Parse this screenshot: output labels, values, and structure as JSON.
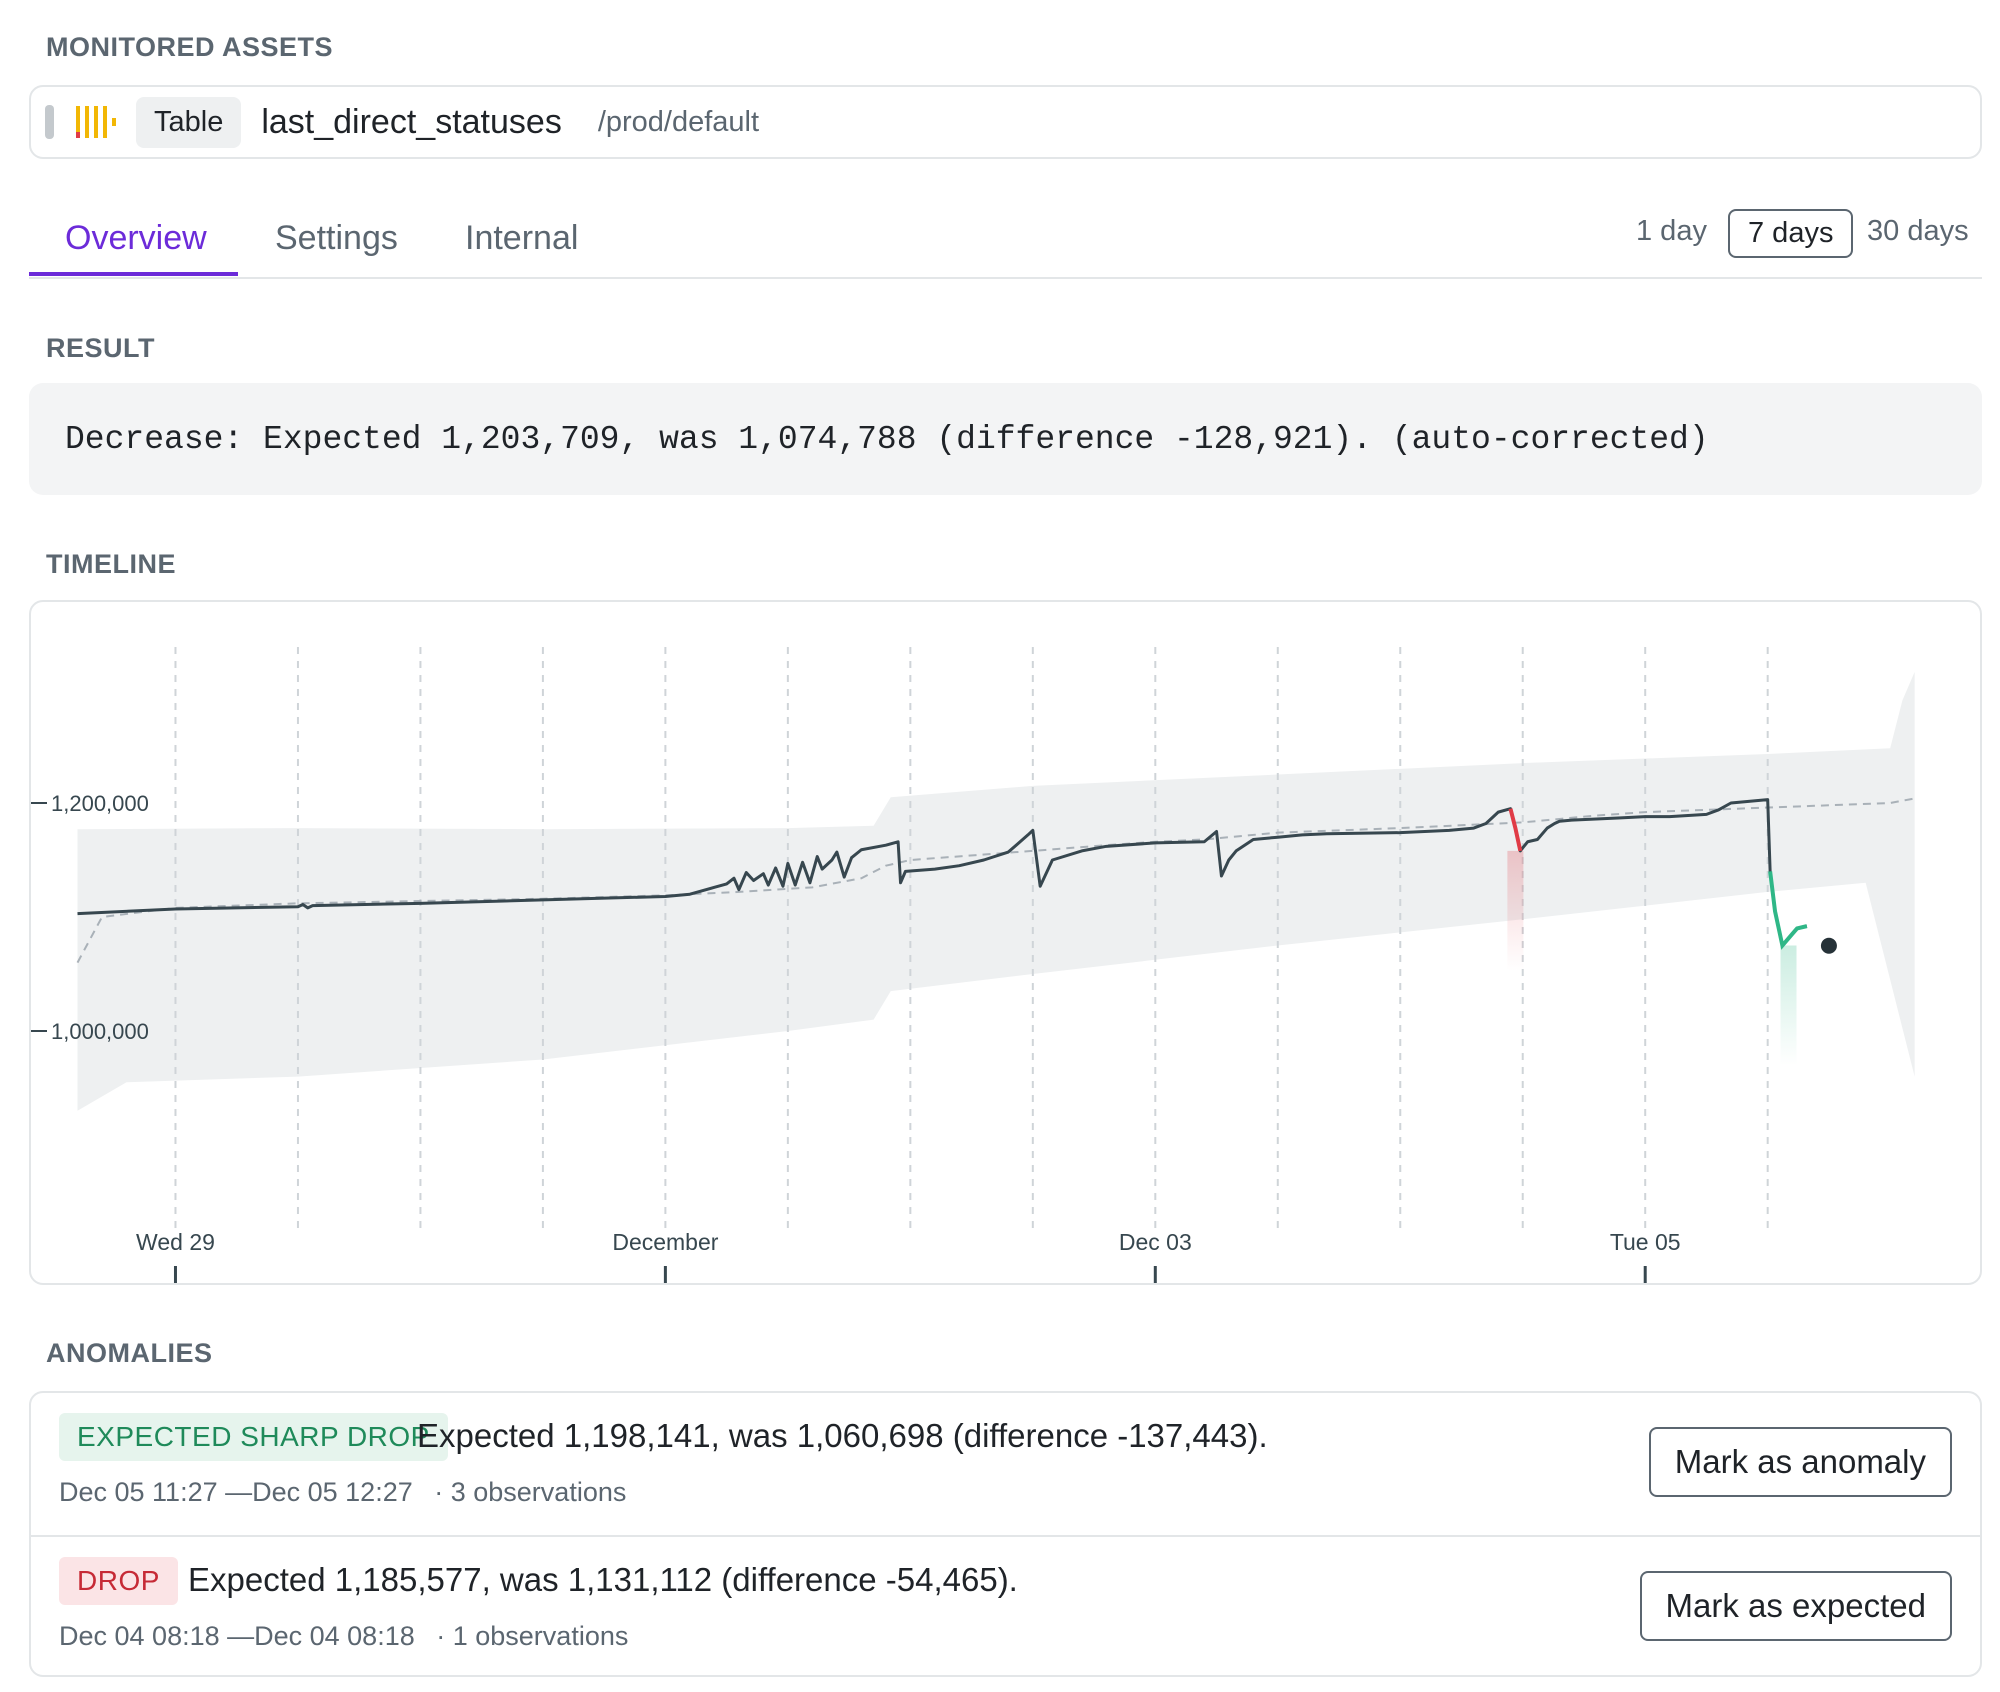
{
  "sections": {
    "monitored_assets": "MONITORED ASSETS",
    "result": "RESULT",
    "timeline": "TIMELINE",
    "anomalies": "ANOMALIES"
  },
  "asset": {
    "type": "Table",
    "name": "last_direct_statuses",
    "path": "/prod/default"
  },
  "tabs": [
    {
      "label": "Overview",
      "active": true
    },
    {
      "label": "Settings",
      "active": false
    },
    {
      "label": "Internal",
      "active": false
    }
  ],
  "ranges": [
    {
      "label": "1 day",
      "active": false
    },
    {
      "label": "7 days",
      "active": true
    },
    {
      "label": "30 days",
      "active": false
    }
  ],
  "result_text": "Decrease: Expected 1,203,709, was 1,074,788 (difference -128,921). (auto-corrected)",
  "chart_data": {
    "type": "line",
    "x_unit": "days since Nov 28 00:00",
    "xlim": [
      -0.5,
      7.33
    ],
    "ylim": [
      850000,
      1350000
    ],
    "y_ticks": [
      {
        "value": 1000000,
        "label": "1,000,000"
      },
      {
        "value": 1200000,
        "label": "1,200,000"
      }
    ],
    "x_ticks": [
      {
        "value": 0,
        "label": "Wed 29"
      },
      {
        "value": 2,
        "label": "December"
      },
      {
        "value": 4,
        "label": "Dec 03"
      },
      {
        "value": 6,
        "label": "Tue 05"
      }
    ],
    "minor_gridlines": [
      0,
      0.5,
      1,
      1.5,
      2,
      2.5,
      3,
      3.5,
      4,
      4.5,
      5,
      5.5,
      6,
      6.5
    ],
    "band_upper": [
      [
        -0.4,
        1177000
      ],
      [
        0.5,
        1178000
      ],
      [
        1.5,
        1177000
      ],
      [
        2.5,
        1178000
      ],
      [
        2.85,
        1180000
      ],
      [
        2.92,
        1205000
      ],
      [
        3.5,
        1215000
      ],
      [
        4.5,
        1225000
      ],
      [
        5.5,
        1235000
      ],
      [
        6.5,
        1243000
      ],
      [
        7.0,
        1248000
      ],
      [
        7.05,
        1290000
      ],
      [
        7.1,
        1315000
      ]
    ],
    "band_lower": [
      [
        -0.4,
        930000
      ],
      [
        -0.2,
        955000
      ],
      [
        0.5,
        960000
      ],
      [
        1.5,
        975000
      ],
      [
        2.5,
        1000000
      ],
      [
        2.85,
        1010000
      ],
      [
        2.92,
        1035000
      ],
      [
        3.5,
        1050000
      ],
      [
        4.5,
        1075000
      ],
      [
        5.5,
        1098000
      ],
      [
        6.5,
        1122000
      ],
      [
        6.9,
        1130000
      ],
      [
        7.1,
        960000
      ]
    ],
    "expected": [
      [
        -0.4,
        1060000
      ],
      [
        -0.3,
        1100000
      ],
      [
        0,
        1108000
      ],
      [
        0.5,
        1112000
      ],
      [
        1,
        1114000
      ],
      [
        1.5,
        1116000
      ],
      [
        2,
        1119000
      ],
      [
        2.3,
        1122000
      ],
      [
        2.6,
        1126000
      ],
      [
        2.8,
        1134000
      ],
      [
        2.9,
        1145000
      ],
      [
        3.0,
        1150000
      ],
      [
        3.5,
        1158000
      ],
      [
        3.8,
        1163000
      ],
      [
        4.0,
        1166000
      ],
      [
        4.2,
        1168000
      ],
      [
        4.5,
        1174000
      ],
      [
        5.0,
        1178000
      ],
      [
        5.5,
        1183000
      ],
      [
        5.8,
        1189000
      ],
      [
        6.0,
        1192000
      ],
      [
        6.5,
        1196000
      ],
      [
        7.0,
        1200000
      ],
      [
        7.1,
        1204000
      ]
    ],
    "actual": [
      [
        -0.4,
        1103000
      ],
      [
        0,
        1107000
      ],
      [
        0.5,
        1109000
      ],
      [
        0.52,
        1111000
      ],
      [
        0.54,
        1108000
      ],
      [
        0.56,
        1110000
      ],
      [
        1,
        1112000
      ],
      [
        1.5,
        1115000
      ],
      [
        2,
        1118000
      ],
      [
        2.1,
        1120000
      ],
      [
        2.2,
        1126000
      ],
      [
        2.25,
        1129000
      ],
      [
        2.28,
        1134000
      ],
      [
        2.3,
        1124000
      ],
      [
        2.33,
        1139000
      ],
      [
        2.36,
        1132000
      ],
      [
        2.4,
        1138000
      ],
      [
        2.42,
        1128000
      ],
      [
        2.45,
        1143000
      ],
      [
        2.48,
        1127000
      ],
      [
        2.5,
        1147000
      ],
      [
        2.53,
        1128000
      ],
      [
        2.56,
        1148000
      ],
      [
        2.59,
        1130000
      ],
      [
        2.62,
        1153000
      ],
      [
        2.64,
        1142000
      ],
      [
        2.68,
        1150000
      ],
      [
        2.7,
        1157000
      ],
      [
        2.73,
        1135000
      ],
      [
        2.76,
        1152000
      ],
      [
        2.8,
        1159000
      ],
      [
        2.9,
        1163000
      ],
      [
        2.95,
        1166000
      ],
      [
        2.96,
        1130000
      ],
      [
        2.98,
        1140000
      ],
      [
        3.1,
        1142000
      ],
      [
        3.2,
        1145000
      ],
      [
        3.3,
        1150000
      ],
      [
        3.4,
        1157000
      ],
      [
        3.48,
        1172000
      ],
      [
        3.5,
        1176000
      ],
      [
        3.53,
        1127000
      ],
      [
        3.58,
        1150000
      ],
      [
        3.7,
        1158000
      ],
      [
        3.8,
        1162000
      ],
      [
        4.0,
        1165000
      ],
      [
        4.2,
        1166000
      ],
      [
        4.25,
        1175000
      ],
      [
        4.27,
        1136000
      ],
      [
        4.3,
        1150000
      ],
      [
        4.33,
        1158000
      ],
      [
        4.4,
        1168000
      ],
      [
        4.5,
        1170000
      ],
      [
        4.6,
        1172000
      ],
      [
        4.7,
        1173000
      ],
      [
        5.0,
        1174000
      ],
      [
        5.2,
        1176000
      ],
      [
        5.3,
        1178000
      ],
      [
        5.35,
        1182000
      ],
      [
        5.4,
        1192000
      ],
      [
        5.45,
        1195000
      ],
      [
        5.47,
        1178000
      ],
      [
        5.49,
        1158000
      ],
      [
        5.52,
        1166000
      ],
      [
        5.56,
        1168000
      ],
      [
        5.6,
        1178000
      ],
      [
        5.63,
        1182000
      ],
      [
        5.65,
        1184000
      ],
      [
        5.7,
        1185000
      ],
      [
        5.9,
        1187000
      ],
      [
        6.0,
        1188000
      ],
      [
        6.1,
        1188000
      ],
      [
        6.25,
        1190000
      ],
      [
        6.3,
        1194000
      ],
      [
        6.35,
        1200000
      ],
      [
        6.5,
        1203000
      ],
      [
        6.5,
        1203000
      ],
      [
        6.51,
        1140000
      ],
      [
        6.53,
        1105000
      ],
      [
        6.56,
        1075000
      ],
      [
        6.6,
        1085000
      ],
      [
        6.62,
        1090000
      ],
      [
        6.66,
        1092000
      ]
    ],
    "actual_segment_colors": [
      {
        "from": 5.45,
        "to": 5.49,
        "color": "#e03b46"
      },
      {
        "from": 6.51,
        "to": 6.66,
        "color": "#2fb787"
      }
    ],
    "last_point": [
      6.75,
      1074788
    ]
  },
  "anomalies": [
    {
      "badge": "EXPECTED SHARP DROP",
      "badge_color": "#1f8a5a",
      "text": "Expected 1,198,141, was 1,060,698 (difference -137,443).",
      "range": "Dec 05 11:27 —Dec 05 12:27",
      "observations": "· 3 observations",
      "action": "Mark as anomaly"
    },
    {
      "badge": "DROP",
      "badge_color": "#c62a36",
      "text": "Expected 1,185,577, was 1,131,112 (difference -54,465).",
      "range": "Dec 04 08:18 —Dec 04 08:18",
      "observations": "· 1 observations",
      "action": "Mark as expected"
    }
  ],
  "colors": {
    "accent": "#6c2bd9",
    "line": "#37474f",
    "expected": "#a9b1b8",
    "band": "#eef0f1",
    "drop": "#e03b46",
    "sharp_drop": "#2fb787"
  }
}
